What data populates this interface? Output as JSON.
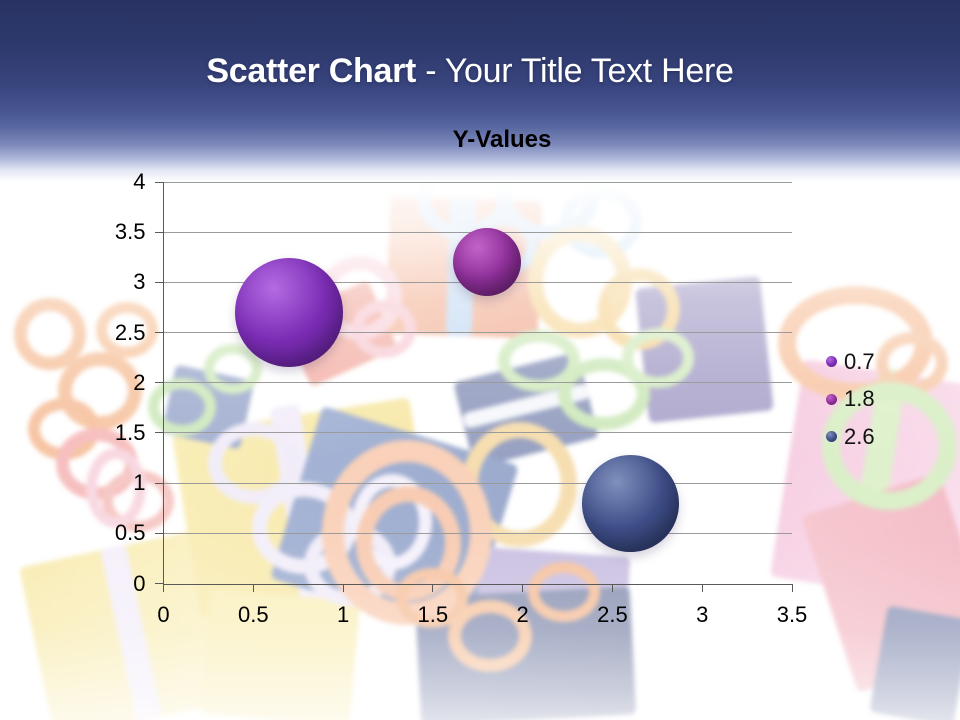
{
  "slide": {
    "title": {
      "bold": "Scatter Chart",
      "rest": " - Your Title Text Here"
    },
    "colors": {
      "banner_top": "#293463",
      "banner_mid": "#55639e",
      "title_text": "#ffffff"
    }
  },
  "chart_data": {
    "type": "scatter",
    "title": "Y-Values",
    "xlabel": "",
    "ylabel": "",
    "xlim": [
      0,
      3.5
    ],
    "ylim": [
      0,
      4
    ],
    "x_ticks": [
      "0",
      "0.5",
      "1",
      "1.5",
      "2",
      "2.5",
      "3",
      "3.5"
    ],
    "y_ticks": [
      "0",
      "0.5",
      "1",
      "1.5",
      "2",
      "2.5",
      "3",
      "3.5",
      "4"
    ],
    "grid": "horizontal-only",
    "legend_position": "right",
    "legend_entries": [
      "0.7",
      "1.8",
      "2.6"
    ],
    "axis_color": "#595959",
    "grid_color": "#9b9b9b",
    "tick_label_color": "#000000",
    "series": [
      {
        "name": "0.7",
        "color": "#7b2cb4",
        "highlight": "#b36be2",
        "shade": "#4f1b7c",
        "points": [
          {
            "x": 0.7,
            "y": 2.7,
            "size": 10
          }
        ]
      },
      {
        "name": "1.8",
        "color": "#8e2f99",
        "highlight": "#c263c9",
        "shade": "#551a5c",
        "points": [
          {
            "x": 1.8,
            "y": 3.2,
            "size": 4
          }
        ]
      },
      {
        "name": "2.6",
        "color": "#3e4d87",
        "highlight": "#7f90bd",
        "shade": "#222e54",
        "points": [
          {
            "x": 2.6,
            "y": 0.8,
            "size": 8
          }
        ]
      }
    ]
  }
}
